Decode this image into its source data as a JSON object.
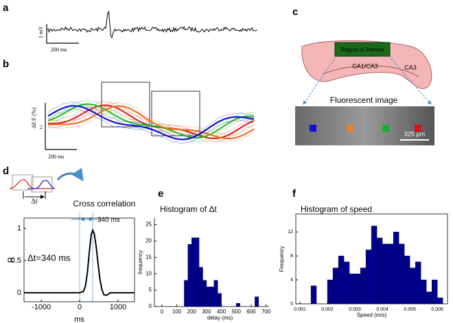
{
  "figure": {
    "labels": [
      "a",
      "b",
      "c",
      "d",
      "e",
      "f"
    ],
    "a": {
      "scale_y": "1 mV",
      "scale_x": "200 ms"
    },
    "b": {
      "scale_y_label": "ΔF/F (%)",
      "scale_y": "2",
      "scale_x": "200 ms"
    },
    "c": {
      "roi": "Region of Interest",
      "region1": "CA1/CA3",
      "region2": "CA3",
      "image_title": "Fluorescent image",
      "scale": "325 µm"
    },
    "d": {
      "icon_label": "Δt",
      "lag_label": "340 ms",
      "annotation": "Δt=340 ms"
    }
  },
  "chart_data": [
    {
      "type": "line",
      "title": "Cross correlation",
      "xlabel": "ms",
      "ylabel": "R",
      "color": "#000000",
      "x": [
        -1450,
        -500,
        0,
        100,
        150,
        200,
        250,
        300,
        340,
        380,
        430,
        480,
        530,
        580,
        630,
        700,
        800,
        1430
      ],
      "values": [
        0,
        0,
        0,
        0.02,
        0.1,
        0.3,
        0.62,
        0.9,
        0.97,
        0.92,
        0.72,
        0.45,
        0.2,
        0.05,
        -0.03,
        -0.04,
        0,
        0
      ],
      "xlim": [
        -1450,
        1430
      ],
      "ylim": [
        -0.14,
        1.16
      ],
      "xticks": [
        -1000,
        0,
        1000
      ],
      "yticks": [
        0,
        0.5,
        1
      ]
    },
    {
      "type": "histogram",
      "title": "Histogram of Δt",
      "xlabel": "delay (ms)",
      "ylabel": "frequency",
      "color": "#00008b",
      "bins": [
        150,
        175,
        200,
        225,
        250,
        275,
        300,
        325,
        350,
        375,
        400,
        425,
        450,
        475,
        500,
        525,
        550,
        575,
        600,
        625,
        650
      ],
      "values": [
        8,
        19,
        21,
        21,
        12,
        8,
        6,
        6,
        8,
        4,
        0,
        0,
        0,
        0,
        1,
        0,
        0,
        0,
        0,
        3
      ],
      "xlim": [
        -50,
        720
      ],
      "ylim": [
        0,
        27
      ],
      "xticks": [
        0,
        100,
        200,
        300,
        400,
        500,
        600,
        700
      ],
      "yticks": [
        0,
        5,
        10,
        15,
        20,
        25
      ]
    },
    {
      "type": "histogram",
      "title": "Histogram of speed",
      "xlabel": "Speed (m/s)",
      "ylabel": "Frequency",
      "color": "#00008b",
      "bins": [
        0.0014,
        0.0016,
        0.0018,
        0.002,
        0.0022,
        0.0024,
        0.0026,
        0.0028,
        0.003,
        0.0032,
        0.0034,
        0.0036,
        0.0038,
        0.004,
        0.0042,
        0.0044,
        0.0046,
        0.0048,
        0.005,
        0.0052,
        0.0054,
        0.0056,
        0.0058,
        0.006,
        0.0062
      ],
      "values": [
        3,
        0,
        0,
        4,
        6,
        8,
        7,
        5,
        5,
        6,
        9,
        13,
        11,
        10,
        10,
        12,
        10,
        8,
        6,
        7,
        4,
        2,
        4,
        1
      ],
      "xlim": [
        0.00085,
        0.00637
      ],
      "ylim": [
        0,
        15
      ],
      "xticks": [
        0.001,
        0.002,
        0.003,
        0.004,
        0.005,
        0.006
      ],
      "yticks": [
        0,
        4,
        8,
        12
      ]
    }
  ]
}
